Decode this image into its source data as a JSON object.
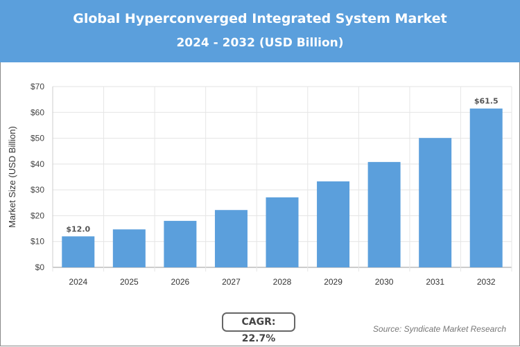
{
  "header": {
    "title": "Global Hyperconverged Integrated System Market",
    "subtitle": "2024 - 2032 (USD Billion)"
  },
  "chart_data": {
    "type": "bar",
    "title": "Global Hyperconverged Integrated System Market",
    "subtitle": "2024 - 2032 (USD Billion)",
    "ylabel": "Market Size (USD Billion)",
    "xlabel": "",
    "categories": [
      "2024",
      "2025",
      "2026",
      "2027",
      "2028",
      "2029",
      "2030",
      "2031",
      "2032"
    ],
    "values": [
      12.0,
      14.7,
      18.0,
      22.2,
      27.1,
      33.3,
      40.8,
      50.1,
      61.5
    ],
    "data_labels": {
      "0": "$12.0",
      "8": "$61.5"
    },
    "ylim": [
      0,
      70
    ],
    "yticks": [
      "$0",
      "$10",
      "$20",
      "$30",
      "$40",
      "$50",
      "$60",
      "$70"
    ],
    "grid": true,
    "bar_color": "#5b9fdc"
  },
  "footer": {
    "cagr": "CAGR: 22.7%",
    "source": "Source: Syndicate Market Research"
  }
}
